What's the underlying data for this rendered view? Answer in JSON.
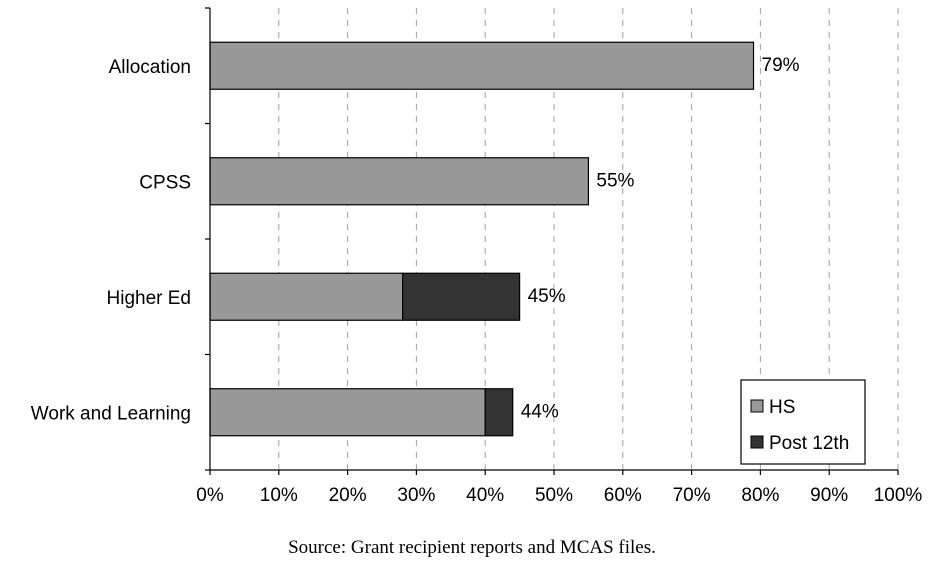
{
  "chart_data": {
    "type": "bar",
    "orientation": "horizontal",
    "stacked": true,
    "categories": [
      "Allocation",
      "CPSS",
      "Higher Ed",
      "Work and Learning"
    ],
    "series": [
      {
        "name": "HS",
        "values": [
          79,
          55,
          28,
          40
        ],
        "color": "#999999"
      },
      {
        "name": "Post 12th",
        "values": [
          0,
          0,
          17,
          4
        ],
        "color": "#333333"
      }
    ],
    "totals_labels": [
      "79%",
      "55%",
      "45%",
      "44%"
    ],
    "xlim": [
      0,
      100
    ],
    "xticks": [
      "0%",
      "10%",
      "20%",
      "30%",
      "40%",
      "50%",
      "60%",
      "70%",
      "80%",
      "90%",
      "100%"
    ],
    "grid": "vertical dashed",
    "legend_position": "bottom-right",
    "source": "Source: Grant recipient reports and MCAS files."
  }
}
